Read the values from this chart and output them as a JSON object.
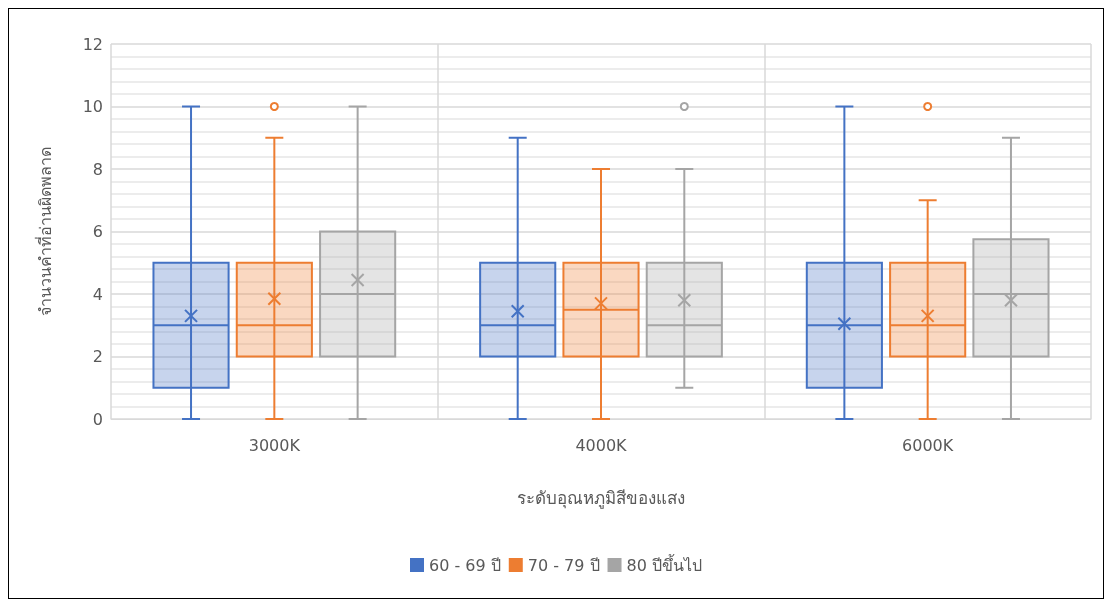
{
  "chart_data": {
    "type": "box",
    "xlabel": "ระดับอุณหภูมิสีของแสง",
    "ylabel": "จำนวนคำที่อ่านผิดพลาด",
    "categories": [
      "3000K",
      "4000K",
      "6000K"
    ],
    "ylim": [
      0,
      12
    ],
    "yticks": [
      0,
      2,
      4,
      6,
      8,
      10,
      12
    ],
    "grid": true,
    "legend": "bottom",
    "series": [
      {
        "name": "60 - 69 ปี",
        "color": "#4472c4",
        "boxes": [
          {
            "low": 0,
            "q1": 1,
            "median": 3,
            "q3": 5,
            "high": 10,
            "mean": 3.3
          },
          {
            "low": 0,
            "q1": 2,
            "median": 3,
            "q3": 5,
            "high": 9,
            "mean": 3.45
          },
          {
            "low": 0,
            "q1": 1,
            "median": 3,
            "q3": 5,
            "high": 10,
            "mean": 3.05
          }
        ]
      },
      {
        "name": "70 - 79 ปี",
        "color": "#ed7d31",
        "boxes": [
          {
            "low": 0,
            "q1": 2,
            "median": 3,
            "q3": 5,
            "high": 9,
            "mean": 3.85,
            "outliers": [
              10
            ]
          },
          {
            "low": 0,
            "q1": 2,
            "median": 3.5,
            "q3": 5,
            "high": 8,
            "mean": 3.7
          },
          {
            "low": 0,
            "q1": 2,
            "median": 3,
            "q3": 5,
            "high": 7,
            "mean": 3.3,
            "outliers": [
              10
            ]
          }
        ]
      },
      {
        "name": "80 ปีขึ้นไป",
        "color": "#a5a5a5",
        "boxes": [
          {
            "low": 0,
            "q1": 2,
            "median": 4,
            "q3": 6,
            "high": 10,
            "mean": 4.45
          },
          {
            "low": 1,
            "q1": 2,
            "median": 3,
            "q3": 5,
            "high": 8,
            "mean": 3.8,
            "outliers": [
              10
            ]
          },
          {
            "low": 0,
            "q1": 2,
            "median": 4,
            "q3": 5.75,
            "high": 9,
            "mean": 3.8
          }
        ]
      }
    ]
  }
}
